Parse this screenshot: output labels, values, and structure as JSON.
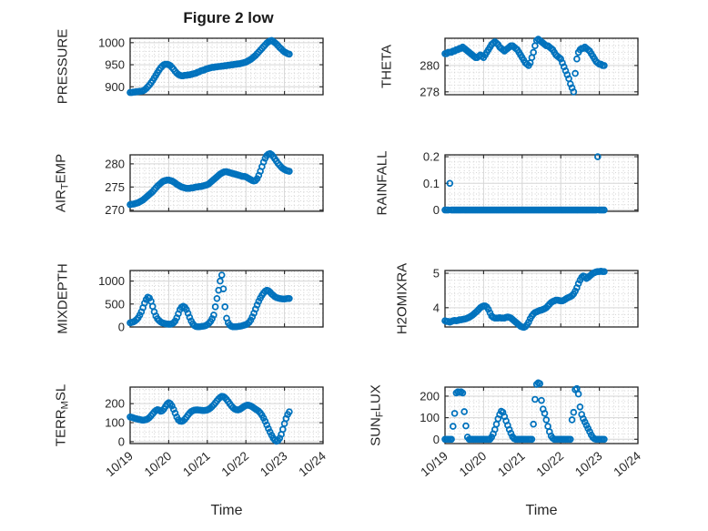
{
  "figure": {
    "title": "Figure 2 low",
    "marker_color": "#0072BD",
    "axis_color": "#262626",
    "grid_color": "#d6d6d6",
    "minor_grid_color": "#cfcfcf",
    "background": "#ffffff"
  },
  "x_axis": {
    "xlabel": "Time",
    "xlim": [
      0,
      5
    ],
    "xticks_days": [
      0,
      1,
      2,
      3,
      4,
      5
    ],
    "xtick_labels": [
      "10/19",
      "10/20",
      "10/21",
      "10/22",
      "10/23",
      "10/24"
    ],
    "minor_x_step_days": 0.125
  },
  "chart_data": [
    {
      "type": "scatter",
      "name": "pressure",
      "ylabel": "PRESSURE",
      "ylabel_parts": {
        "pre": "PRESSURE",
        "sub": "",
        "post": ""
      },
      "yticks": [
        900,
        950,
        1000
      ],
      "ytick_labels": [
        "900",
        "950",
        "1000"
      ],
      "ylim": [
        882,
        1010
      ],
      "minor_y_step": 10,
      "x_start": 0,
      "x_step_days": 0.0416667,
      "values": [
        887,
        887,
        888,
        888,
        889,
        889,
        890,
        890,
        891,
        893,
        896,
        900,
        904,
        909,
        914,
        920,
        926,
        932,
        938,
        943,
        947,
        950,
        951,
        951,
        950,
        948,
        944,
        940,
        935,
        931,
        928,
        926,
        925,
        925,
        926,
        926,
        927,
        927,
        928,
        929,
        930,
        931,
        933,
        934,
        936,
        937,
        938,
        940,
        941,
        942,
        943,
        944,
        944,
        945,
        945,
        946,
        946,
        947,
        947,
        948,
        948,
        949,
        949,
        950,
        950,
        951,
        951,
        952,
        952,
        953,
        954,
        955,
        956,
        958,
        960,
        962,
        965,
        968,
        971,
        975,
        979,
        983,
        987,
        991,
        995,
        999,
        1002,
        1004,
        1005,
        1003,
        1000,
        997,
        993,
        989,
        986,
        982,
        979,
        977,
        975,
        974
      ]
    },
    {
      "type": "scatter",
      "name": "theta",
      "ylabel": "THETA",
      "ylabel_parts": {
        "pre": "THETA",
        "sub": "",
        "post": ""
      },
      "yticks": [
        278,
        280
      ],
      "ytick_labels": [
        "278",
        "280"
      ],
      "ylim": [
        277.78,
        282.07
      ],
      "minor_y_step": 0.5,
      "x_start": 0,
      "x_step_days": 0.0416667,
      "values": [
        280.9,
        280.9,
        281.0,
        281.0,
        281.0,
        281.1,
        281.1,
        281.2,
        281.2,
        281.3,
        281.3,
        281.4,
        281.3,
        281.2,
        281.1,
        281.0,
        280.9,
        280.8,
        280.7,
        280.6,
        280.6,
        280.7,
        280.8,
        280.7,
        280.6,
        280.8,
        281.0,
        281.2,
        281.4,
        281.6,
        281.7,
        281.8,
        281.7,
        281.6,
        281.4,
        281.3,
        281.2,
        281.1,
        281.2,
        281.3,
        281.4,
        281.5,
        281.5,
        281.4,
        281.3,
        281.2,
        281.0,
        280.8,
        280.6,
        280.4,
        280.2,
        280.1,
        280.0,
        280.2,
        280.6,
        281.0,
        281.5,
        281.9,
        282.0,
        281.9,
        281.8,
        281.7,
        281.6,
        281.5,
        281.5,
        281.4,
        281.3,
        281.2,
        281.0,
        280.8,
        280.7,
        280.6,
        280.5,
        280.2,
        279.9,
        279.6,
        279.3,
        279.0,
        278.6,
        278.3,
        278.0,
        279.4,
        280.5,
        281.0,
        281.2,
        281.3,
        281.3,
        281.4,
        281.3,
        281.2,
        281.1,
        280.9,
        280.7,
        280.5,
        280.3,
        280.2,
        280.1,
        280.1,
        280.0,
        280.0
      ]
    },
    {
      "type": "scatter",
      "name": "air-temp",
      "ylabel": "AIR_TEMP",
      "ylabel_parts": {
        "pre": "AIR",
        "sub": "T",
        "post": "EMP"
      },
      "yticks": [
        270,
        275,
        280
      ],
      "ytick_labels": [
        "270",
        "275",
        "280"
      ],
      "ylim": [
        269.75,
        281.95
      ],
      "minor_y_step": 1,
      "x_start": 0,
      "x_step_days": 0.0416667,
      "values": [
        271.2,
        271.3,
        271.3,
        271.4,
        271.5,
        271.6,
        271.8,
        272.0,
        272.2,
        272.5,
        272.8,
        273.1,
        273.4,
        273.7,
        274.0,
        274.4,
        274.8,
        275.2,
        275.5,
        275.8,
        276.1,
        276.3,
        276.4,
        276.5,
        276.5,
        276.4,
        276.3,
        276.1,
        275.9,
        275.6,
        275.4,
        275.2,
        275.0,
        274.9,
        274.8,
        274.7,
        274.7,
        274.7,
        274.8,
        274.8,
        274.9,
        275.0,
        275.0,
        275.1,
        275.1,
        275.2,
        275.3,
        275.4,
        275.5,
        275.7,
        276.0,
        276.3,
        276.6,
        276.9,
        277.2,
        277.5,
        277.8,
        278.0,
        278.2,
        278.3,
        278.3,
        278.2,
        278.1,
        278.0,
        277.9,
        277.8,
        277.7,
        277.6,
        277.5,
        277.4,
        277.3,
        277.3,
        277.2,
        277.0,
        276.8,
        276.6,
        276.4,
        276.3,
        276.4,
        276.8,
        277.5,
        278.4,
        279.4,
        280.4,
        281.2,
        281.8,
        282.1,
        282.2,
        282.0,
        281.6,
        281.1,
        280.6,
        280.1,
        279.7,
        279.3,
        279.0,
        278.8,
        278.6,
        278.5,
        278.4
      ]
    },
    {
      "type": "scatter",
      "name": "rainfall",
      "ylabel": "RAINFALL",
      "ylabel_parts": {
        "pre": "RAINFALL",
        "sub": "",
        "post": ""
      },
      "yticks": [
        0,
        0.1,
        0.2
      ],
      "ytick_labels": [
        "0",
        "0.1",
        "0.2"
      ],
      "ylim": [
        -0.005,
        0.207
      ],
      "minor_y_step": 0.02,
      "x_start": 0,
      "x_step_days": 0.0416667,
      "values": [
        0,
        0,
        0,
        0.1,
        0,
        0,
        0,
        0,
        0,
        0,
        0,
        0,
        0,
        0,
        0,
        0,
        0,
        0,
        0,
        0,
        0,
        0,
        0,
        0,
        0,
        0,
        0,
        0,
        0,
        0,
        0,
        0,
        0,
        0,
        0,
        0,
        0,
        0,
        0,
        0,
        0,
        0,
        0,
        0,
        0,
        0,
        0,
        0,
        0,
        0,
        0,
        0,
        0,
        0,
        0,
        0,
        0,
        0,
        0,
        0,
        0,
        0,
        0,
        0,
        0,
        0,
        0,
        0,
        0,
        0,
        0,
        0,
        0,
        0,
        0,
        0,
        0,
        0,
        0,
        0,
        0,
        0,
        0,
        0,
        0,
        0,
        0,
        0,
        0,
        0,
        0,
        0,
        0,
        0,
        0,
        0.2,
        0,
        0,
        0,
        0
      ]
    },
    {
      "type": "scatter",
      "name": "mixdepth",
      "ylabel": "MIXDEPTH",
      "ylabel_parts": {
        "pre": "MIXDEPTH",
        "sub": "",
        "post": ""
      },
      "yticks": [
        0,
        500,
        1000
      ],
      "ytick_labels": [
        "0",
        "500",
        "1000"
      ],
      "ylim": [
        0,
        1230
      ],
      "minor_y_step": 100,
      "x_start": 0,
      "x_step_days": 0.0416667,
      "values": [
        90,
        100,
        110,
        130,
        160,
        200,
        260,
        330,
        420,
        520,
        600,
        650,
        630,
        560,
        450,
        330,
        240,
        180,
        140,
        110,
        90,
        80,
        70,
        65,
        60,
        60,
        70,
        90,
        130,
        200,
        290,
        380,
        430,
        450,
        430,
        380,
        300,
        210,
        130,
        70,
        30,
        10,
        5,
        5,
        10,
        15,
        20,
        30,
        50,
        80,
        120,
        180,
        260,
        440,
        620,
        800,
        1000,
        1130,
        830,
        440,
        190,
        90,
        40,
        15,
        5,
        5,
        5,
        10,
        15,
        20,
        30,
        40,
        50,
        70,
        100,
        150,
        220,
        300,
        390,
        480,
        560,
        630,
        690,
        740,
        780,
        800,
        790,
        760,
        720,
        690,
        660,
        640,
        630,
        620,
        615,
        610,
        610,
        615,
        620,
        620
      ]
    },
    {
      "type": "scatter",
      "name": "h2omixra",
      "ylabel": "H2OMIXRA",
      "ylabel_parts": {
        "pre": "H2OMIXRA",
        "sub": "",
        "post": ""
      },
      "yticks": [
        4,
        5
      ],
      "ytick_labels": [
        "4",
        "5"
      ],
      "ylim": [
        3.44,
        5.08
      ],
      "minor_y_step": 0.2,
      "x_start": 0,
      "x_step_days": 0.0416667,
      "values": [
        3.62,
        3.6,
        3.6,
        3.58,
        3.6,
        3.62,
        3.63,
        3.62,
        3.63,
        3.65,
        3.65,
        3.66,
        3.67,
        3.68,
        3.7,
        3.72,
        3.75,
        3.78,
        3.82,
        3.86,
        3.9,
        3.95,
        4.0,
        4.03,
        4.05,
        4.05,
        4.02,
        3.95,
        3.85,
        3.76,
        3.72,
        3.7,
        3.7,
        3.7,
        3.71,
        3.7,
        3.7,
        3.7,
        3.72,
        3.73,
        3.72,
        3.7,
        3.66,
        3.62,
        3.58,
        3.54,
        3.5,
        3.46,
        3.44,
        3.43,
        3.45,
        3.5,
        3.58,
        3.68,
        3.76,
        3.82,
        3.86,
        3.88,
        3.9,
        3.92,
        3.93,
        3.95,
        3.97,
        4.0,
        4.05,
        4.1,
        4.15,
        4.18,
        4.2,
        4.22,
        4.22,
        4.21,
        4.2,
        4.2,
        4.22,
        4.25,
        4.28,
        4.3,
        4.32,
        4.35,
        4.4,
        4.48,
        4.58,
        4.7,
        4.8,
        4.88,
        4.92,
        4.9,
        4.85,
        4.88,
        4.92,
        4.96,
        5.0,
        5.02,
        5.04,
        5.05,
        5.05,
        5.06,
        5.05,
        5.05
      ]
    },
    {
      "type": "scatter",
      "name": "terr-msl",
      "ylabel": "TERR_MSL",
      "ylabel_parts": {
        "pre": "TERR",
        "sub": "M",
        "post": "SL"
      },
      "yticks": [
        0,
        100,
        200
      ],
      "ytick_labels": [
        "0",
        "100",
        "200"
      ],
      "ylim": [
        -10,
        287
      ],
      "minor_y_step": 25,
      "x_start": 0,
      "x_step_days": 0.0416667,
      "values": [
        130,
        128,
        125,
        122,
        120,
        118,
        116,
        114,
        113,
        114,
        116,
        120,
        127,
        136,
        146,
        156,
        164,
        168,
        166,
        160,
        163,
        172,
        185,
        198,
        205,
        200,
        188,
        170,
        150,
        130,
        115,
        108,
        107,
        110,
        118,
        128,
        140,
        150,
        158,
        163,
        166,
        167,
        167,
        166,
        165,
        164,
        164,
        165,
        167,
        171,
        177,
        185,
        194,
        204,
        215,
        225,
        233,
        238,
        237,
        231,
        222,
        211,
        199,
        188,
        179,
        172,
        168,
        167,
        169,
        174,
        180,
        186,
        190,
        192,
        191,
        188,
        183,
        177,
        171,
        166,
        160,
        151,
        139,
        124,
        107,
        88,
        69,
        51,
        34,
        19,
        8,
        2,
        6,
        18,
        38,
        65,
        95,
        122,
        143,
        157
      ]
    },
    {
      "type": "scatter",
      "name": "sun-flux",
      "ylabel": "SUN_FLUX",
      "ylabel_parts": {
        "pre": "SUN",
        "sub": "F",
        "post": "LUX"
      },
      "yticks": [
        0,
        100,
        200
      ],
      "ytick_labels": [
        "0",
        "100",
        "200"
      ],
      "ylim": [
        -20,
        242
      ],
      "minor_y_step": 25,
      "x_start": 0,
      "x_step_days": 0.0416667,
      "values": [
        0,
        0,
        0,
        0,
        0,
        60,
        120,
        215,
        220,
        218,
        220,
        215,
        128,
        62,
        10,
        0,
        0,
        0,
        0,
        0,
        0,
        0,
        0,
        0,
        0,
        0,
        0,
        0,
        0,
        10,
        25,
        45,
        70,
        95,
        115,
        130,
        125,
        105,
        85,
        65,
        45,
        28,
        12,
        3,
        0,
        0,
        0,
        0,
        0,
        0,
        0,
        0,
        0,
        0,
        0,
        70,
        185,
        255,
        262,
        258,
        180,
        140,
        120,
        90,
        60,
        35,
        15,
        5,
        0,
        0,
        0,
        0,
        0,
        0,
        0,
        0,
        0,
        0,
        0,
        90,
        125,
        230,
        235,
        210,
        150,
        115,
        95,
        80,
        65,
        50,
        35,
        20,
        8,
        2,
        0,
        0,
        0,
        0,
        0,
        0
      ]
    }
  ]
}
